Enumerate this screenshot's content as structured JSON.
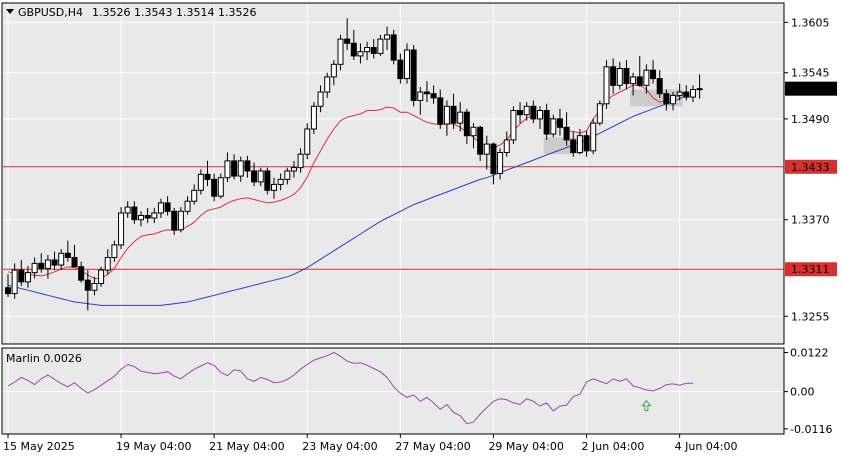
{
  "colors": {
    "background": "#ffffff",
    "plot_bg": "#e9e9e9",
    "grid": "#ffffff",
    "axis": "#000000",
    "candle": "#000000",
    "level": "#d8312c",
    "fast_ma": "#e03030",
    "slow_ma": "#2a3fd0",
    "marlin": "#a044b0",
    "arrow": "#3aa84a",
    "box": "#c9c9c9",
    "price_tag": "#000000"
  },
  "header": {
    "symbol": "GBPUSD,H4",
    "ohlc": "1.3526 1.3543 1.3514 1.3526"
  },
  "chart_data": [
    {
      "type": "candlestick",
      "title": "GBPUSD,H4",
      "ylim": [
        1.3222,
        1.3628
      ],
      "y_ticks": [
        "1.3605",
        "1.3545",
        "1.3490",
        "1.3370",
        "1.3255"
      ],
      "current_price": "1.3526",
      "levels": [
        {
          "label": "1.3433",
          "value": 1.3433
        },
        {
          "label": "1.3311",
          "value": 1.3311
        }
      ],
      "x_labels": [
        "15 May 2025",
        "19 May 04:00",
        "21 May 04:00",
        "23 May 04:00",
        "27 May 04:00",
        "29 May 04:00",
        "2 Jun 04:00",
        "4 Jun 04:00"
      ],
      "x_label_index": [
        0,
        17,
        31,
        45,
        59,
        73,
        87,
        101
      ],
      "candles": [
        [
          1.3289,
          1.3305,
          1.3278,
          1.3282
        ],
        [
          1.3282,
          1.3318,
          1.3276,
          1.331
        ],
        [
          1.331,
          1.3322,
          1.3291,
          1.3296
        ],
        [
          1.3296,
          1.3315,
          1.3289,
          1.3307
        ],
        [
          1.3307,
          1.3325,
          1.33,
          1.3318
        ],
        [
          1.3318,
          1.333,
          1.3307,
          1.3312
        ],
        [
          1.3312,
          1.3328,
          1.33,
          1.3322
        ],
        [
          1.3322,
          1.3332,
          1.331,
          1.3316
        ],
        [
          1.3316,
          1.3335,
          1.331,
          1.333
        ],
        [
          1.333,
          1.3345,
          1.332,
          1.3325
        ],
        [
          1.3325,
          1.334,
          1.3318,
          1.3314
        ],
        [
          1.3314,
          1.332,
          1.3295,
          1.3298
        ],
        [
          1.3298,
          1.331,
          1.3262,
          1.3286
        ],
        [
          1.3286,
          1.3302,
          1.328,
          1.3294
        ],
        [
          1.3294,
          1.3314,
          1.329,
          1.331
        ],
        [
          1.331,
          1.3335,
          1.3305,
          1.3325
        ],
        [
          1.3325,
          1.3345,
          1.332,
          1.334
        ],
        [
          1.334,
          1.3385,
          1.3335,
          1.3378
        ],
        [
          1.3378,
          1.3392,
          1.3372,
          1.3385
        ],
        [
          1.3385,
          1.3392,
          1.3365,
          1.337
        ],
        [
          1.337,
          1.338,
          1.3362,
          1.3375
        ],
        [
          1.3375,
          1.3384,
          1.3366,
          1.3372
        ],
        [
          1.3372,
          1.3384,
          1.3366,
          1.3378
        ],
        [
          1.3378,
          1.3395,
          1.3372,
          1.339
        ],
        [
          1.339,
          1.3398,
          1.3375,
          1.338
        ],
        [
          1.338,
          1.3384,
          1.3352,
          1.3358
        ],
        [
          1.3358,
          1.3385,
          1.3355,
          1.338
        ],
        [
          1.338,
          1.3398,
          1.3376,
          1.3392
        ],
        [
          1.3392,
          1.3412,
          1.3388,
          1.3405
        ],
        [
          1.3405,
          1.343,
          1.34,
          1.3424
        ],
        [
          1.3424,
          1.344,
          1.341,
          1.3418
        ],
        [
          1.3418,
          1.3425,
          1.3392,
          1.3398
        ],
        [
          1.3398,
          1.3425,
          1.3395,
          1.342
        ],
        [
          1.342,
          1.345,
          1.3415,
          1.344
        ],
        [
          1.344,
          1.3448,
          1.3418,
          1.3422
        ],
        [
          1.3422,
          1.3445,
          1.3415,
          1.344
        ],
        [
          1.344,
          1.3446,
          1.342,
          1.3428
        ],
        [
          1.3428,
          1.3438,
          1.341,
          1.3415
        ],
        [
          1.3415,
          1.3432,
          1.341,
          1.3428
        ],
        [
          1.3428,
          1.3432,
          1.34,
          1.3405
        ],
        [
          1.3405,
          1.342,
          1.3395,
          1.3412
        ],
        [
          1.3412,
          1.3425,
          1.3405,
          1.3418
        ],
        [
          1.3418,
          1.3432,
          1.3412,
          1.3428
        ],
        [
          1.3428,
          1.344,
          1.342,
          1.3432
        ],
        [
          1.3432,
          1.3455,
          1.3426,
          1.3448
        ],
        [
          1.3448,
          1.3485,
          1.3442,
          1.3478
        ],
        [
          1.3478,
          1.351,
          1.3472,
          1.3505
        ],
        [
          1.3505,
          1.353,
          1.3498,
          1.3522
        ],
        [
          1.3522,
          1.3545,
          1.3515,
          1.354
        ],
        [
          1.354,
          1.356,
          1.353,
          1.3555
        ],
        [
          1.3555,
          1.359,
          1.3548,
          1.3585
        ],
        [
          1.3585,
          1.361,
          1.3572,
          1.358
        ],
        [
          1.358,
          1.3596,
          1.356,
          1.3565
        ],
        [
          1.3565,
          1.358,
          1.3556,
          1.357
        ],
        [
          1.357,
          1.3582,
          1.356,
          1.3575
        ],
        [
          1.3575,
          1.3585,
          1.3562,
          1.3568
        ],
        [
          1.3568,
          1.359,
          1.3565,
          1.3585
        ],
        [
          1.3585,
          1.36,
          1.3572,
          1.359
        ],
        [
          1.359,
          1.3596,
          1.3555,
          1.356
        ],
        [
          1.356,
          1.3568,
          1.3532,
          1.3538
        ],
        [
          1.3538,
          1.358,
          1.3532,
          1.3572
        ],
        [
          1.3572,
          1.3578,
          1.3505,
          1.3512
        ],
        [
          1.3512,
          1.3528,
          1.3495,
          1.3522
        ],
        [
          1.3522,
          1.3535,
          1.351,
          1.352
        ],
        [
          1.352,
          1.353,
          1.3508,
          1.3515
        ],
        [
          1.3515,
          1.3525,
          1.3478,
          1.3484
        ],
        [
          1.3484,
          1.3512,
          1.347,
          1.3505
        ],
        [
          1.3505,
          1.352,
          1.3478,
          1.3485
        ],
        [
          1.3485,
          1.351,
          1.3475,
          1.3498
        ],
        [
          1.3498,
          1.3502,
          1.346,
          1.347
        ],
        [
          1.347,
          1.3485,
          1.3455,
          1.348
        ],
        [
          1.348,
          1.3482,
          1.344,
          1.3448
        ],
        [
          1.3448,
          1.347,
          1.343,
          1.346
        ],
        [
          1.346,
          1.3462,
          1.3412,
          1.3425
        ],
        [
          1.3425,
          1.3455,
          1.3418,
          1.345
        ],
        [
          1.345,
          1.3475,
          1.3445,
          1.3465
        ],
        [
          1.3465,
          1.3505,
          1.346,
          1.35
        ],
        [
          1.35,
          1.351,
          1.3485,
          1.3495
        ],
        [
          1.3495,
          1.351,
          1.3488,
          1.3505
        ],
        [
          1.3505,
          1.3512,
          1.3485,
          1.349
        ],
        [
          1.349,
          1.3505,
          1.3478,
          1.35
        ],
        [
          1.35,
          1.3508,
          1.3465,
          1.3472
        ],
        [
          1.3472,
          1.3495,
          1.3468,
          1.349
        ],
        [
          1.349,
          1.3502,
          1.347,
          1.348
        ],
        [
          1.348,
          1.3498,
          1.3458,
          1.3465
        ],
        [
          1.3465,
          1.3475,
          1.3445,
          1.345
        ],
        [
          1.345,
          1.3478,
          1.3448,
          1.347
        ],
        [
          1.347,
          1.3476,
          1.3445,
          1.3452
        ],
        [
          1.3452,
          1.349,
          1.3448,
          1.3485
        ],
        [
          1.3485,
          1.3512,
          1.3482,
          1.3508
        ],
        [
          1.3508,
          1.356,
          1.3502,
          1.3552
        ],
        [
          1.3552,
          1.3562,
          1.352,
          1.353
        ],
        [
          1.353,
          1.3558,
          1.3525,
          1.355
        ],
        [
          1.355,
          1.356,
          1.3525,
          1.3532
        ],
        [
          1.3532,
          1.3545,
          1.3518,
          1.354
        ],
        [
          1.354,
          1.3565,
          1.3528,
          1.353
        ],
        [
          1.353,
          1.3555,
          1.352,
          1.3548
        ],
        [
          1.3548,
          1.356,
          1.3532,
          1.3538
        ],
        [
          1.3538,
          1.3548,
          1.3515,
          1.352
        ],
        [
          1.352,
          1.3525,
          1.35,
          1.3508
        ],
        [
          1.3508,
          1.3522,
          1.35,
          1.3518
        ],
        [
          1.3518,
          1.3532,
          1.3512,
          1.3522
        ],
        [
          1.3522,
          1.353,
          1.3512,
          1.3516
        ],
        [
          1.3516,
          1.353,
          1.351,
          1.3525
        ],
        [
          1.3525,
          1.3543,
          1.3514,
          1.3526
        ]
      ],
      "fast_ma": [
        1.3308,
        1.3306,
        1.3306,
        1.3305,
        1.3304,
        1.3303,
        1.3305,
        1.3308,
        1.3311,
        1.3314,
        1.3313,
        1.331,
        1.3304,
        1.33,
        1.33,
        1.3305,
        1.3312,
        1.3325,
        1.3336,
        1.3344,
        1.335,
        1.3352,
        1.3353,
        1.3356,
        1.3358,
        1.3357,
        1.3358,
        1.3362,
        1.3367,
        1.3375,
        1.3381,
        1.3383,
        1.3385,
        1.339,
        1.3393,
        1.3395,
        1.3396,
        1.3394,
        1.3392,
        1.339,
        1.3391,
        1.3393,
        1.3396,
        1.34,
        1.3408,
        1.3421,
        1.3438,
        1.3452,
        1.3466,
        1.3478,
        1.3488,
        1.3492,
        1.3494,
        1.3496,
        1.35,
        1.35,
        1.3501,
        1.3504,
        1.3503,
        1.3498,
        1.3498,
        1.3494,
        1.349,
        1.3486,
        1.3484,
        1.3483,
        1.3484,
        1.3484,
        1.348,
        1.3474,
        1.3468,
        1.3461,
        1.3457,
        1.3455,
        1.3459,
        1.3465,
        1.3476,
        1.3484,
        1.3491,
        1.3494,
        1.3495,
        1.3493,
        1.3489,
        1.3482,
        1.3476,
        1.3475,
        1.3473,
        1.3476,
        1.349,
        1.35,
        1.3512,
        1.3518,
        1.3522,
        1.3526,
        1.353,
        1.353,
        1.3525,
        1.3515,
        1.351,
        1.3512,
        1.3514,
        1.3518,
        1.3522
      ],
      "slow_ma": [
        1.3292,
        1.329,
        1.3288,
        1.3286,
        1.3284,
        1.3282,
        1.328,
        1.3278,
        1.3276,
        1.3274,
        1.3272,
        1.3271,
        1.327,
        1.3269,
        1.3268,
        1.3268,
        1.3268,
        1.3268,
        1.3268,
        1.3268,
        1.3268,
        1.3268,
        1.3268,
        1.3268,
        1.3269,
        1.327,
        1.3271,
        1.3272,
        1.3274,
        1.3276,
        1.3278,
        1.328,
        1.3282,
        1.3284,
        1.3286,
        1.3288,
        1.329,
        1.3292,
        1.3294,
        1.3296,
        1.3298,
        1.33,
        1.3302,
        1.3305,
        1.3309,
        1.3313,
        1.3318,
        1.3323,
        1.3328,
        1.3333,
        1.3338,
        1.3343,
        1.3348,
        1.3353,
        1.3358,
        1.3363,
        1.3368,
        1.3372,
        1.3376,
        1.338,
        1.3384,
        1.3388,
        1.3391,
        1.3394,
        1.3397,
        1.34,
        1.3403,
        1.3406,
        1.3409,
        1.3412,
        1.3415,
        1.3418,
        1.342,
        1.3423,
        1.3426,
        1.3429,
        1.3432,
        1.3435,
        1.3438,
        1.3441,
        1.3444,
        1.3447,
        1.345,
        1.3453,
        1.3456,
        1.3459,
        1.3462,
        1.3465,
        1.3469,
        1.3473,
        1.3477,
        1.3481,
        1.3485,
        1.3489,
        1.3493,
        1.3496,
        1.3499,
        1.3502,
        1.3505,
        1.3508,
        1.3511,
        1.3514,
        1.3518
      ]
    },
    {
      "type": "line",
      "title": "Marlin 0.0026",
      "ylim": [
        -0.0132,
        0.0136
      ],
      "y_ticks": [
        "0.0122",
        "0.00",
        "-0.0116"
      ],
      "zero_line": true,
      "signal_arrow": {
        "index": 96,
        "direction": "up"
      },
      "values": [
        0.0018,
        0.003,
        0.0044,
        0.0035,
        0.0022,
        0.004,
        0.0052,
        0.0038,
        0.0025,
        0.0015,
        0.0028,
        0.001,
        -0.0004,
        0.0006,
        0.002,
        0.0034,
        0.0048,
        0.007,
        0.0085,
        0.0078,
        0.0064,
        0.006,
        0.0056,
        0.0058,
        0.0062,
        0.0048,
        0.004,
        0.0056,
        0.007,
        0.008,
        0.009,
        0.0082,
        0.006,
        0.005,
        0.0068,
        0.0064,
        0.004,
        0.0032,
        0.0044,
        0.0038,
        0.0028,
        0.003,
        0.0038,
        0.0052,
        0.007,
        0.0085,
        0.0098,
        0.0105,
        0.0112,
        0.0122,
        0.011,
        0.0095,
        0.0088,
        0.009,
        0.0082,
        0.0072,
        0.0062,
        0.0044,
        0.0015,
        -0.0005,
        -0.0018,
        -0.001,
        -0.003,
        -0.0018,
        -0.0035,
        -0.0055,
        -0.004,
        -0.0065,
        -0.0075,
        -0.01,
        -0.0095,
        -0.007,
        -0.005,
        -0.003,
        -0.0022,
        -0.0025,
        -0.0035,
        -0.004,
        -0.0022,
        -0.003,
        -0.0045,
        -0.0035,
        -0.006,
        -0.0045,
        -0.0042,
        -0.0015,
        -0.0008,
        0.003,
        0.004,
        0.0032,
        0.0025,
        0.004,
        0.0032,
        0.004,
        0.0018,
        0.0012,
        0.0005,
        0.0002,
        0.001,
        0.0022,
        0.0024,
        0.002,
        0.0026,
        0.0026
      ]
    }
  ]
}
